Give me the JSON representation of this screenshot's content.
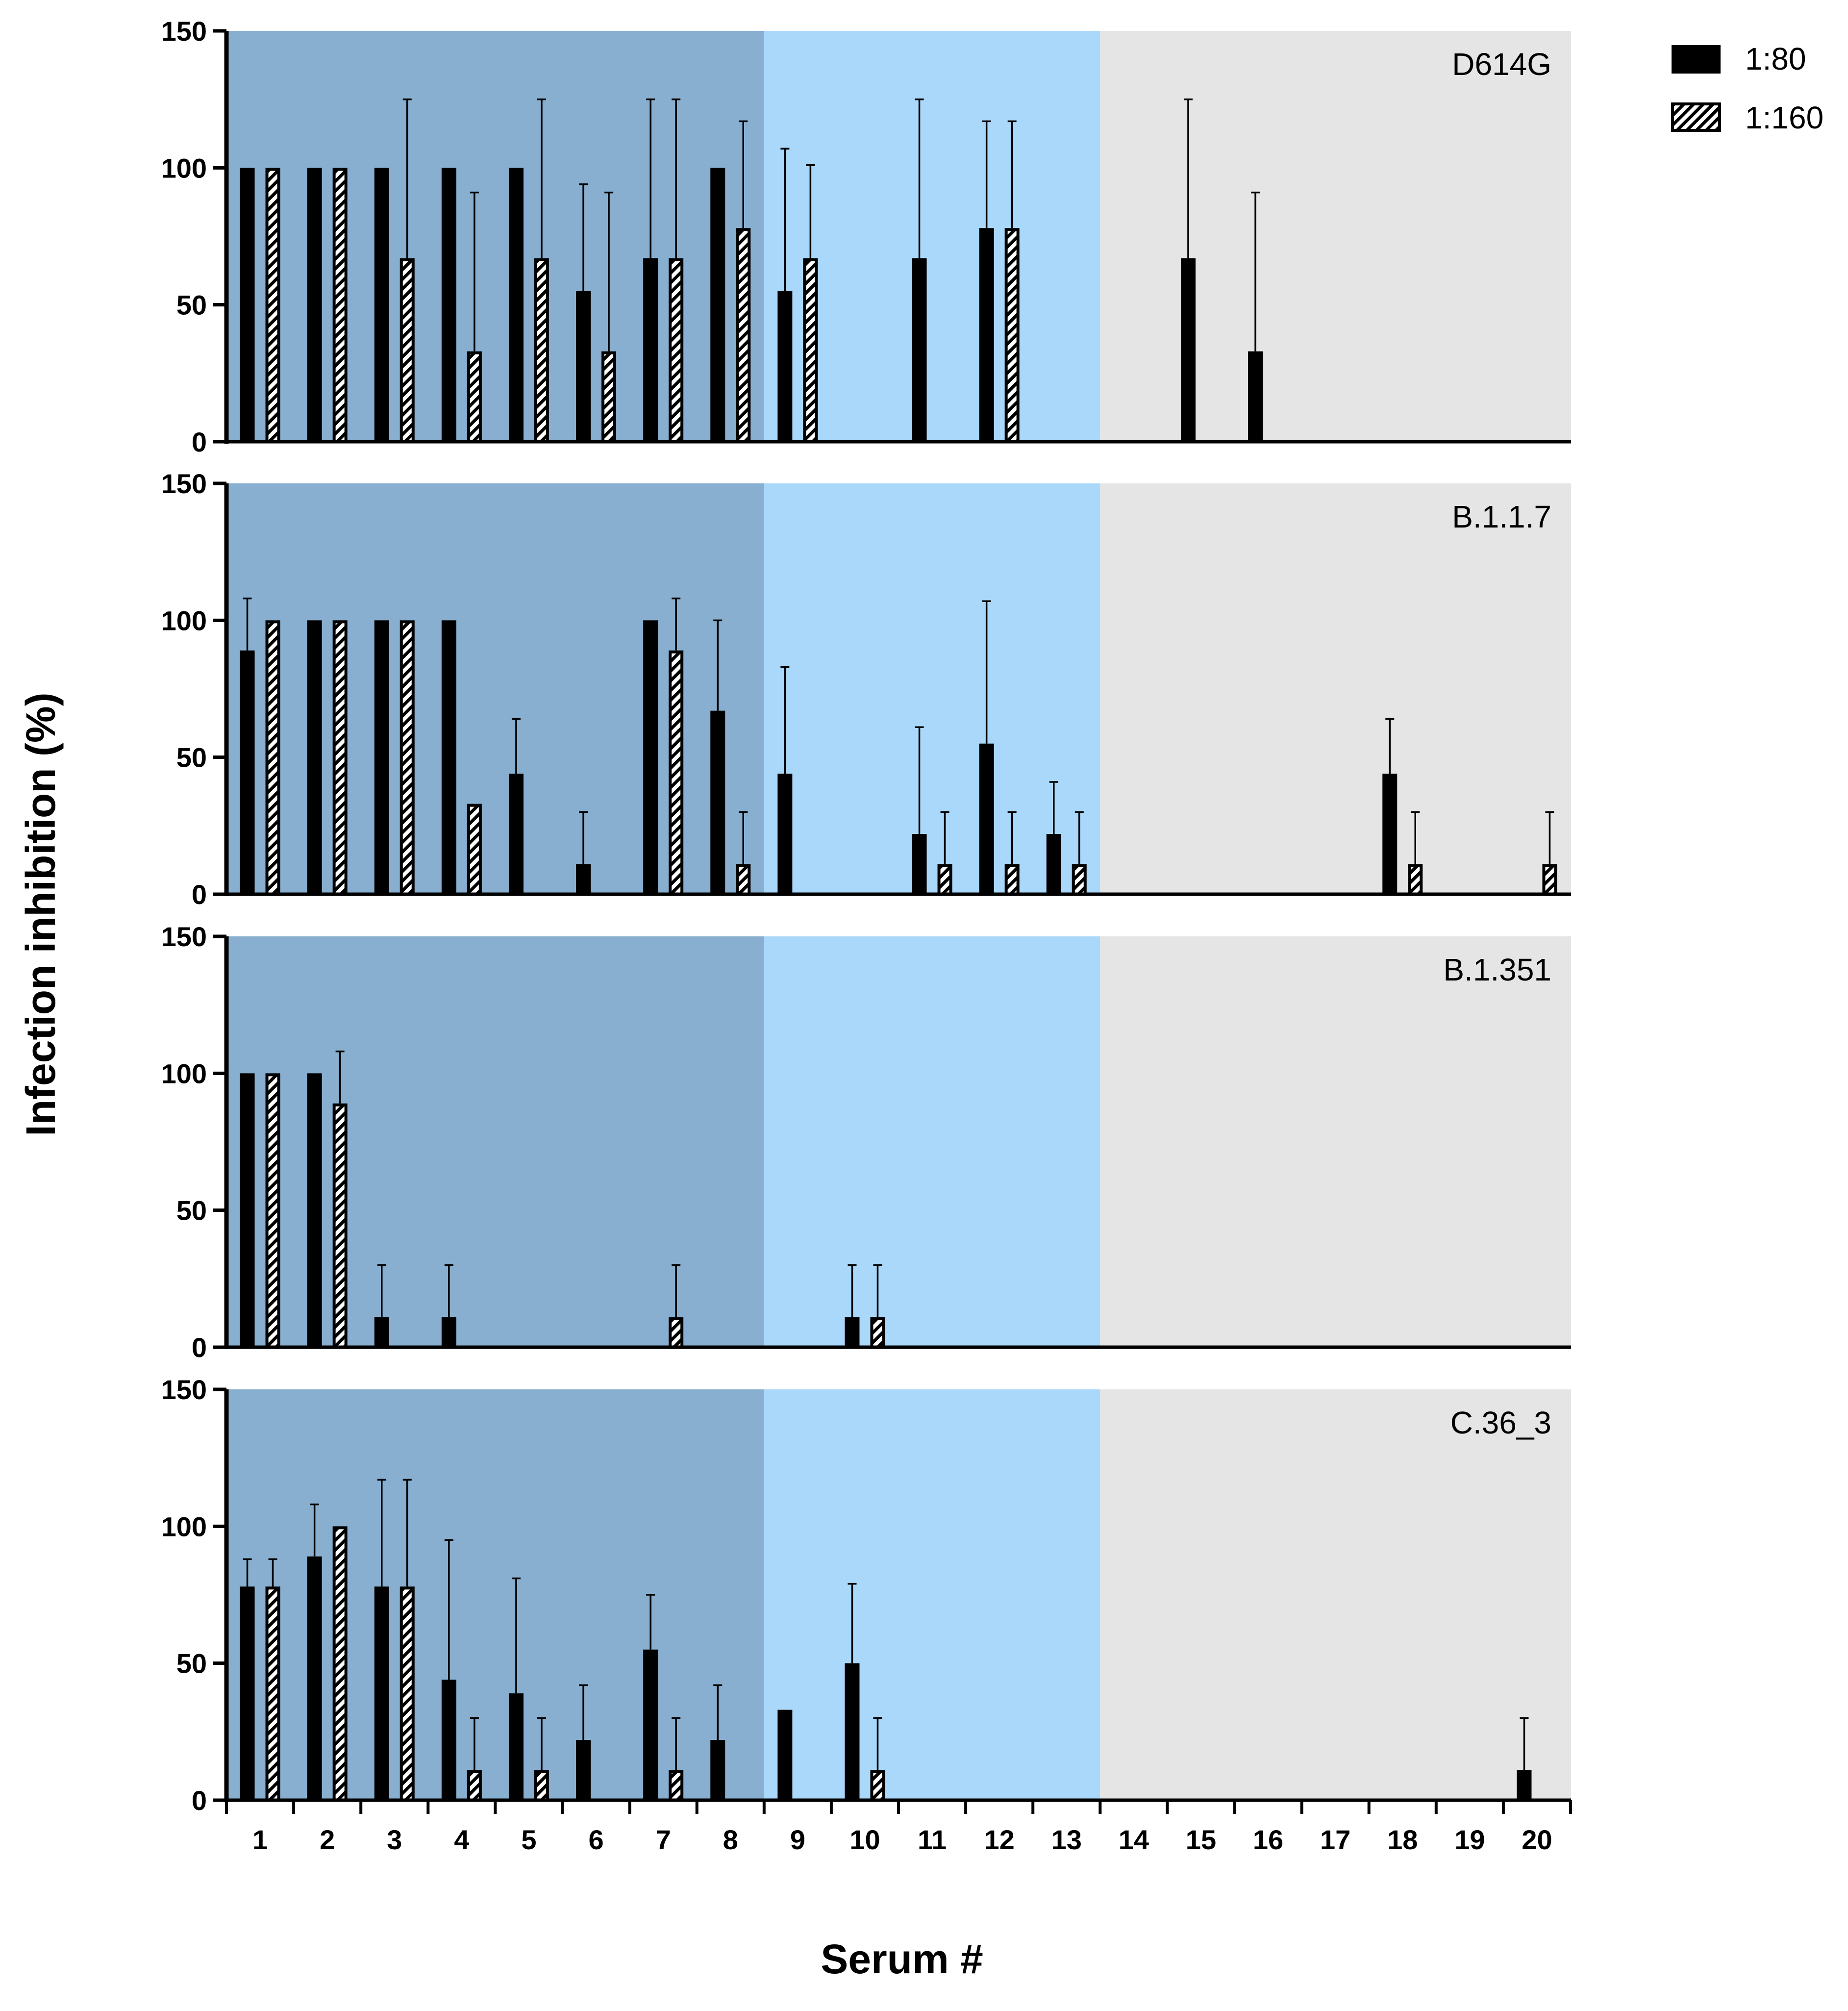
{
  "colors": {
    "group_1": "#88afd0",
    "group_2": "#a9d8fa",
    "group_3": "#e5e5e5",
    "bar_1_80": "#000000",
    "bar_1_160_hatch": "#000000"
  },
  "chart_data": {
    "type": "bar",
    "xlabel": "Serum #",
    "ylabel": "Infection inhibition (%)",
    "ylim": [
      0,
      150
    ],
    "yticks": [
      0,
      50,
      100,
      150
    ],
    "categories": [
      "1",
      "2",
      "3",
      "4",
      "5",
      "6",
      "7",
      "8",
      "9",
      "10",
      "11",
      "12",
      "13",
      "14",
      "15",
      "16",
      "17",
      "18",
      "19",
      "20"
    ],
    "background_groups": [
      {
        "from": 1,
        "to": 8,
        "color": "#88afd0"
      },
      {
        "from": 9,
        "to": 13,
        "color": "#a9d8fa"
      },
      {
        "from": 14,
        "to": 20,
        "color": "#e5e5e5"
      }
    ],
    "legend": {
      "placement": "top-right",
      "entries": [
        {
          "label": "1:80",
          "style": "solid"
        },
        {
          "label": "1:160",
          "style": "hatched"
        }
      ]
    },
    "panels": [
      {
        "label": "D614G",
        "series": [
          {
            "name": "1:80",
            "values": [
              100,
              100,
              100,
              100,
              100,
              55,
              67,
              100,
              55,
              0,
              67,
              78,
              0,
              0,
              67,
              33,
              0,
              0,
              0,
              0
            ],
            "errors": [
              0,
              0,
              0,
              0,
              0,
              39,
              58,
              0,
              52,
              0,
              58,
              39,
              0,
              0,
              58,
              58,
              0,
              0,
              0,
              0
            ]
          },
          {
            "name": "1:160",
            "values": [
              100,
              100,
              67,
              33,
              67,
              33,
              67,
              78,
              67,
              0,
              0,
              78,
              0,
              0,
              0,
              0,
              0,
              0,
              0,
              0
            ],
            "errors": [
              0,
              0,
              58,
              58,
              58,
              58,
              58,
              39,
              34,
              0,
              0,
              39,
              0,
              0,
              0,
              0,
              0,
              0,
              0,
              0
            ]
          }
        ]
      },
      {
        "label": "B.1.1.7",
        "series": [
          {
            "name": "1:80",
            "values": [
              89,
              100,
              100,
              100,
              44,
              11,
              100,
              67,
              44,
              0,
              22,
              55,
              22,
              0,
              0,
              0,
              0,
              44,
              0,
              0
            ],
            "errors": [
              19,
              0,
              0,
              0,
              20,
              19,
              0,
              33,
              39,
              0,
              39,
              52,
              19,
              0,
              0,
              0,
              0,
              20,
              0,
              0
            ]
          },
          {
            "name": "1:160",
            "values": [
              100,
              100,
              100,
              33,
              0,
              0,
              89,
              11,
              0,
              0,
              11,
              11,
              11,
              0,
              0,
              0,
              0,
              11,
              0,
              11
            ],
            "errors": [
              0,
              0,
              0,
              0,
              0,
              0,
              19,
              19,
              0,
              0,
              19,
              19,
              19,
              0,
              0,
              0,
              0,
              19,
              0,
              19
            ]
          }
        ]
      },
      {
        "label": "B.1.351",
        "series": [
          {
            "name": "1:80",
            "values": [
              100,
              100,
              11,
              11,
              0,
              0,
              0,
              0,
              0,
              11,
              0,
              0,
              0,
              0,
              0,
              0,
              0,
              0,
              0,
              0
            ],
            "errors": [
              0,
              0,
              19,
              19,
              0,
              0,
              0,
              0,
              0,
              19,
              0,
              0,
              0,
              0,
              0,
              0,
              0,
              0,
              0,
              0
            ]
          },
          {
            "name": "1:160",
            "values": [
              100,
              89,
              0,
              0,
              0,
              0,
              11,
              0,
              0,
              11,
              0,
              0,
              0,
              0,
              0,
              0,
              0,
              0,
              0,
              0
            ],
            "errors": [
              0,
              19,
              0,
              0,
              0,
              0,
              19,
              0,
              0,
              19,
              0,
              0,
              0,
              0,
              0,
              0,
              0,
              0,
              0,
              0
            ]
          }
        ]
      },
      {
        "label": "C.36_3",
        "series": [
          {
            "name": "1:80",
            "values": [
              78,
              89,
              78,
              44,
              39,
              22,
              55,
              22,
              33,
              50,
              0,
              0,
              0,
              0,
              0,
              0,
              0,
              0,
              0,
              11
            ],
            "errors": [
              10,
              19,
              39,
              51,
              42,
              20,
              20,
              20,
              0,
              29,
              0,
              0,
              0,
              0,
              0,
              0,
              0,
              0,
              0,
              19
            ]
          },
          {
            "name": "1:160",
            "values": [
              78,
              100,
              78,
              11,
              11,
              0,
              11,
              0,
              0,
              11,
              0,
              0,
              0,
              0,
              0,
              0,
              0,
              0,
              0,
              0
            ],
            "errors": [
              10,
              0,
              39,
              19,
              19,
              0,
              19,
              0,
              0,
              19,
              0,
              0,
              0,
              0,
              0,
              0,
              0,
              0,
              0,
              0
            ]
          }
        ]
      }
    ]
  }
}
